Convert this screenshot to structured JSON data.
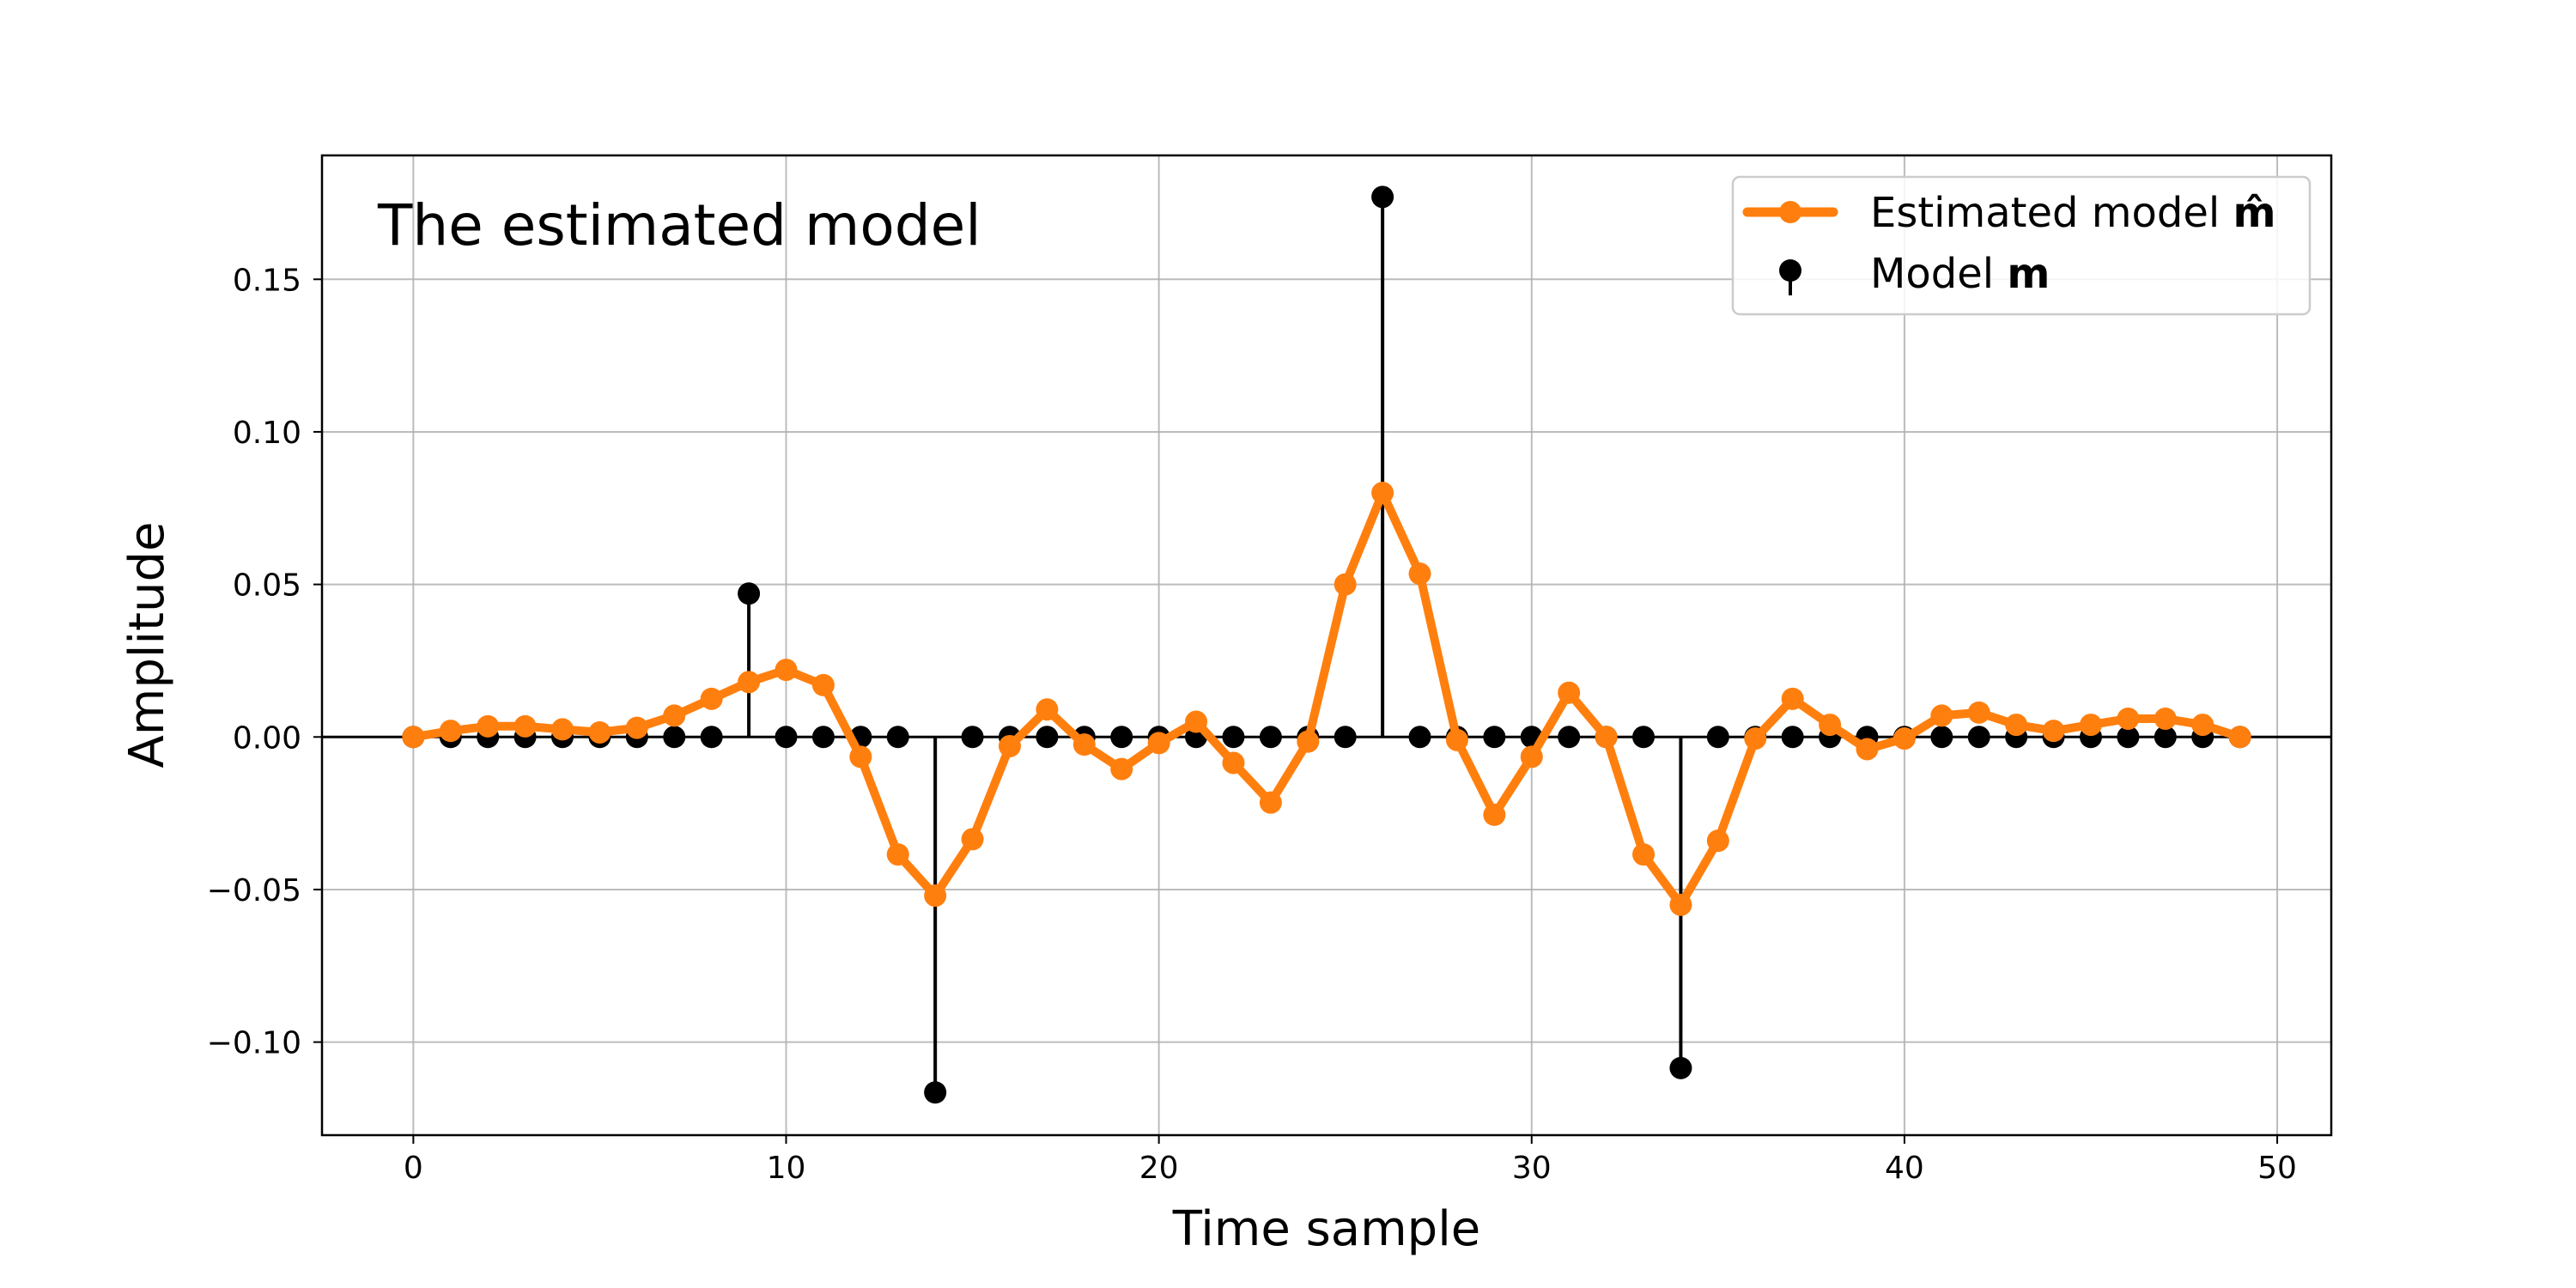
{
  "chart_data": {
    "type": "line",
    "annotation": "The estimated model",
    "xlabel": "Time sample",
    "ylabel": "Amplitude",
    "xlim": [
      -2.45,
      51.45
    ],
    "ylim": [
      -0.1305,
      0.1906
    ],
    "xticks": [
      0,
      10,
      20,
      30,
      40,
      50
    ],
    "xtick_labels": [
      "0",
      "10",
      "20",
      "30",
      "40",
      "50"
    ],
    "yticks": [
      -0.1,
      -0.05,
      0.0,
      0.05,
      0.1,
      0.15
    ],
    "ytick_labels": [
      "−0.10",
      "−0.05",
      "0.00",
      "0.05",
      "0.10",
      "0.15"
    ],
    "grid": true,
    "legend_position": "top-right",
    "x": [
      0,
      1,
      2,
      3,
      4,
      5,
      6,
      7,
      8,
      9,
      10,
      11,
      12,
      13,
      14,
      15,
      16,
      17,
      18,
      19,
      20,
      21,
      22,
      23,
      24,
      25,
      26,
      27,
      28,
      29,
      30,
      31,
      32,
      33,
      34,
      35,
      36,
      37,
      38,
      39,
      40,
      41,
      42,
      43,
      44,
      45,
      46,
      47,
      48,
      49
    ],
    "series": [
      {
        "name": "Estimated model m̂",
        "style": "line-markers",
        "color": "#ff7f0e",
        "values": [
          0.0,
          0.002,
          0.0035,
          0.0035,
          0.0025,
          0.0015,
          0.003,
          0.007,
          0.0125,
          0.018,
          0.022,
          0.017,
          -0.0065,
          -0.0385,
          -0.052,
          -0.0335,
          -0.003,
          0.009,
          -0.0025,
          -0.0105,
          -0.002,
          0.005,
          -0.0085,
          -0.0215,
          -0.0015,
          0.05,
          0.08,
          0.0535,
          -0.001,
          -0.0255,
          -0.0065,
          0.0145,
          0.0,
          -0.0385,
          -0.055,
          -0.034,
          -0.0005,
          0.0125,
          0.004,
          -0.004,
          -0.0005,
          0.007,
          0.008,
          0.004,
          0.002,
          0.004,
          0.006,
          0.006,
          0.004,
          0.0
        ]
      },
      {
        "name": "Model m",
        "style": "stem",
        "color": "#000000",
        "values": [
          0,
          0,
          0,
          0,
          0,
          0,
          0,
          0,
          0,
          0.047,
          0,
          0,
          0,
          0,
          -0.1165,
          0,
          0,
          0,
          0,
          0,
          0,
          0,
          0,
          0,
          0,
          0,
          0.177,
          0,
          0,
          0,
          0,
          0,
          0,
          0,
          -0.1085,
          0,
          0,
          0,
          0,
          0,
          0,
          0,
          0,
          0,
          0,
          0,
          0,
          0,
          0,
          0
        ]
      }
    ],
    "legend": [
      {
        "label": "Estimated model ",
        "symbol": "m̂"
      },
      {
        "label": "Model ",
        "symbol": "m"
      }
    ]
  }
}
